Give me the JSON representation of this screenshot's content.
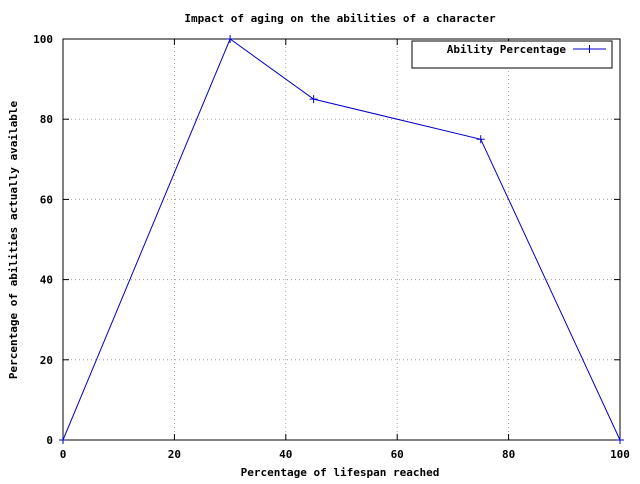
{
  "chart_data": {
    "type": "line",
    "title": "Impact of aging on the abilities of a character",
    "xlabel": "Percentage of lifespan reached",
    "ylabel": "Percentage of abilities actually available",
    "xlim": [
      0,
      100
    ],
    "ylim": [
      0,
      100
    ],
    "xticks": [
      0,
      20,
      40,
      60,
      80,
      100
    ],
    "yticks": [
      0,
      20,
      40,
      60,
      80,
      100
    ],
    "grid": true,
    "legend_position": "top-right",
    "series": [
      {
        "name": "Ability Percentage",
        "color": "#0000c8",
        "marker": "plus",
        "points": [
          {
            "x": 0,
            "y": 0
          },
          {
            "x": 30,
            "y": 100
          },
          {
            "x": 45,
            "y": 85
          },
          {
            "x": 75,
            "y": 75
          },
          {
            "x": 100,
            "y": 0
          }
        ]
      }
    ]
  }
}
